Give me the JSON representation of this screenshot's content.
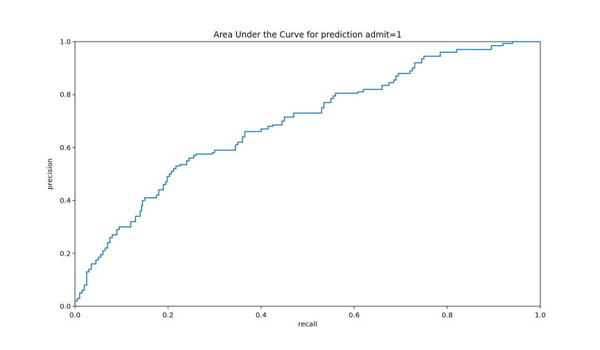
{
  "chart_data": {
    "type": "line",
    "title": "Area Under the Curve for prediction admit=1",
    "xlabel": "recall",
    "ylabel": "precision",
    "xlim": [
      0.0,
      1.0
    ],
    "ylim": [
      0.0,
      1.0
    ],
    "grid": false,
    "x_ticks": [
      "0.0",
      "0.2",
      "0.4",
      "0.6",
      "0.8",
      "1.0"
    ],
    "y_ticks": [
      "0.0",
      "0.2",
      "0.4",
      "0.6",
      "0.8",
      "1.0"
    ],
    "color": "#1f77b4",
    "series": [
      {
        "step": "post",
        "points": [
          [
            0.0,
            0.0
          ],
          [
            0.0,
            0.02
          ],
          [
            0.005,
            0.03
          ],
          [
            0.01,
            0.05
          ],
          [
            0.015,
            0.06
          ],
          [
            0.02,
            0.08
          ],
          [
            0.025,
            0.13
          ],
          [
            0.03,
            0.14
          ],
          [
            0.035,
            0.16
          ],
          [
            0.045,
            0.175
          ],
          [
            0.05,
            0.185
          ],
          [
            0.055,
            0.195
          ],
          [
            0.06,
            0.21
          ],
          [
            0.065,
            0.22
          ],
          [
            0.07,
            0.24
          ],
          [
            0.075,
            0.26
          ],
          [
            0.08,
            0.27
          ],
          [
            0.09,
            0.29
          ],
          [
            0.095,
            0.3
          ],
          [
            0.12,
            0.32
          ],
          [
            0.13,
            0.34
          ],
          [
            0.14,
            0.36
          ],
          [
            0.143,
            0.38
          ],
          [
            0.145,
            0.4
          ],
          [
            0.15,
            0.41
          ],
          [
            0.175,
            0.42
          ],
          [
            0.18,
            0.44
          ],
          [
            0.19,
            0.46
          ],
          [
            0.195,
            0.47
          ],
          [
            0.198,
            0.49
          ],
          [
            0.203,
            0.5
          ],
          [
            0.207,
            0.51
          ],
          [
            0.212,
            0.52
          ],
          [
            0.217,
            0.53
          ],
          [
            0.225,
            0.535
          ],
          [
            0.24,
            0.55
          ],
          [
            0.245,
            0.56
          ],
          [
            0.255,
            0.57
          ],
          [
            0.26,
            0.575
          ],
          [
            0.295,
            0.58
          ],
          [
            0.3,
            0.59
          ],
          [
            0.345,
            0.61
          ],
          [
            0.35,
            0.62
          ],
          [
            0.36,
            0.64
          ],
          [
            0.365,
            0.66
          ],
          [
            0.4,
            0.67
          ],
          [
            0.415,
            0.68
          ],
          [
            0.425,
            0.685
          ],
          [
            0.445,
            0.7
          ],
          [
            0.45,
            0.715
          ],
          [
            0.47,
            0.73
          ],
          [
            0.53,
            0.75
          ],
          [
            0.535,
            0.77
          ],
          [
            0.55,
            0.785
          ],
          [
            0.555,
            0.795
          ],
          [
            0.56,
            0.805
          ],
          [
            0.608,
            0.81
          ],
          [
            0.62,
            0.82
          ],
          [
            0.66,
            0.835
          ],
          [
            0.675,
            0.845
          ],
          [
            0.685,
            0.855
          ],
          [
            0.69,
            0.87
          ],
          [
            0.695,
            0.88
          ],
          [
            0.72,
            0.89
          ],
          [
            0.725,
            0.9
          ],
          [
            0.73,
            0.92
          ],
          [
            0.745,
            0.935
          ],
          [
            0.75,
            0.945
          ],
          [
            0.785,
            0.96
          ],
          [
            0.82,
            0.97
          ],
          [
            0.895,
            0.985
          ],
          [
            0.92,
            0.993
          ],
          [
            0.94,
            1.0
          ],
          [
            1.0,
            1.0
          ]
        ]
      }
    ]
  }
}
